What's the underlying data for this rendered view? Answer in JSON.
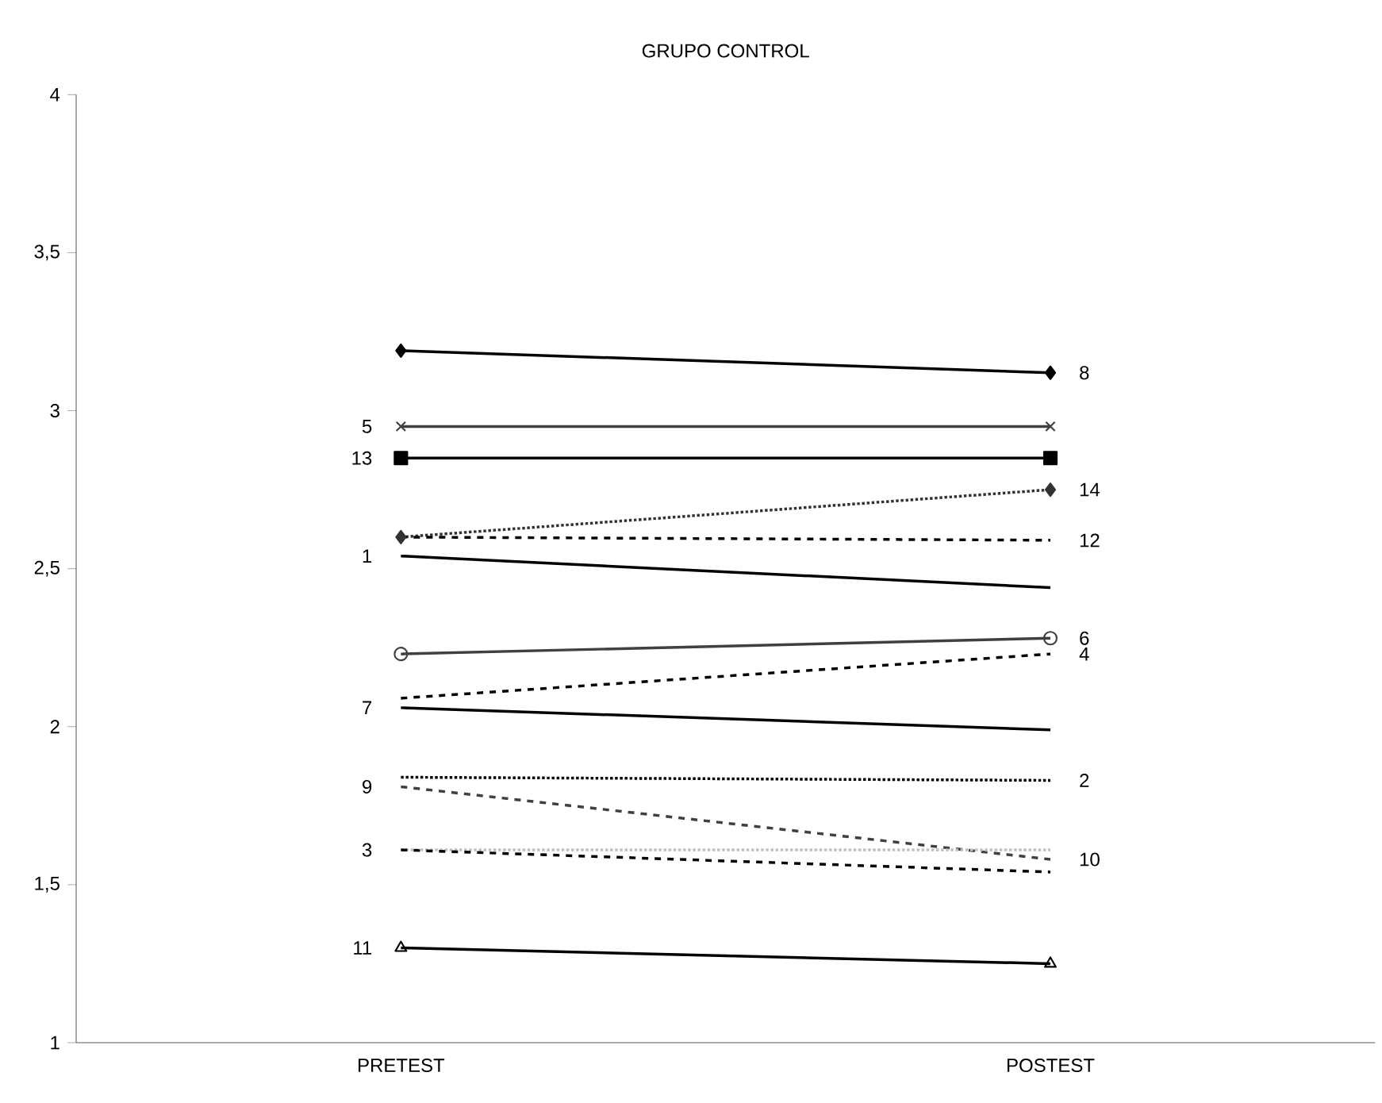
{
  "chart_data": {
    "type": "line",
    "title": "GRUPO CONTROL",
    "categories": [
      "PRETEST",
      "POSTEST"
    ],
    "ylim": [
      1,
      4
    ],
    "yticks": [
      1,
      {
        "value": 1.5,
        "label": "1,5"
      },
      2,
      {
        "value": 2.5,
        "label": "2,5"
      },
      3,
      {
        "value": 3.5,
        "label": "3,5"
      },
      4
    ],
    "grid": false,
    "series": [
      {
        "color": "#000000",
        "values": [
          3.19,
          3.12
        ],
        "marker": "diamond",
        "line_style": "solid"
      },
      {
        "color": "#404040",
        "values": [
          2.95,
          2.95
        ],
        "marker": "cross",
        "line_style": "solid"
      },
      {
        "color": "#000000",
        "values": [
          2.85,
          2.85
        ],
        "marker": "square",
        "line_style": "solid"
      },
      {
        "color": "#333333",
        "values": [
          2.6,
          2.75
        ],
        "marker": "diamond",
        "line_style": "dotted"
      },
      {
        "color": "#000000",
        "values": [
          2.6,
          2.59
        ],
        "marker": "none",
        "line_style": "dashed"
      },
      {
        "color": "#000000",
        "values": [
          2.54,
          2.44
        ],
        "marker": "none",
        "line_style": "solid"
      },
      {
        "color": "#404040",
        "values": [
          2.23,
          2.28
        ],
        "marker": "circle",
        "line_style": "solid"
      },
      {
        "color": "#000000",
        "values": [
          2.09,
          2.23
        ],
        "marker": "none",
        "line_style": "dashed"
      },
      {
        "color": "#000000",
        "values": [
          2.06,
          1.99
        ],
        "marker": "none",
        "line_style": "solid"
      },
      {
        "color": "#000000",
        "values": [
          1.84,
          1.83
        ],
        "marker": "none",
        "line_style": "dotted"
      },
      {
        "color": "#404040",
        "values": [
          1.81,
          1.58
        ],
        "marker": "none",
        "line_style": "dashed"
      },
      {
        "color": "#c0c0c0",
        "values": [
          1.61,
          1.61
        ],
        "marker": "none",
        "line_style": "dotted"
      },
      {
        "color": "#000000",
        "values": [
          1.61,
          1.54
        ],
        "marker": "none",
        "line_style": "dashed"
      },
      {
        "color": "#000000",
        "values": [
          1.3,
          1.25
        ],
        "marker": "triangle",
        "line_style": "solid"
      }
    ],
    "annotations": [
      {
        "text": "8",
        "x": "POSTEST",
        "y": 3.12
      },
      {
        "text": "5",
        "x": "PRETEST",
        "y": 2.95
      },
      {
        "text": "13",
        "x": "PRETEST",
        "y": 2.85
      },
      {
        "text": "14",
        "x": "POSTEST",
        "y": 2.75
      },
      {
        "text": "12",
        "x": "POSTEST",
        "y": 2.59
      },
      {
        "text": "1",
        "x": "PRETEST",
        "y": 2.54
      },
      {
        "text": "6",
        "x": "POSTEST",
        "y": 2.28
      },
      {
        "text": "4",
        "x": "POSTEST",
        "y": 2.23
      },
      {
        "text": "7",
        "x": "PRETEST",
        "y": 2.06
      },
      {
        "text": "2",
        "x": "POSTEST",
        "y": 1.83
      },
      {
        "text": "9",
        "x": "PRETEST",
        "y": 1.81
      },
      {
        "text": "10",
        "x": "POSTEST",
        "y": 1.58
      },
      {
        "text": "3",
        "x": "PRETEST",
        "y": 1.61
      },
      {
        "text": "11",
        "x": "PRETEST",
        "y": 1.3
      }
    ]
  }
}
